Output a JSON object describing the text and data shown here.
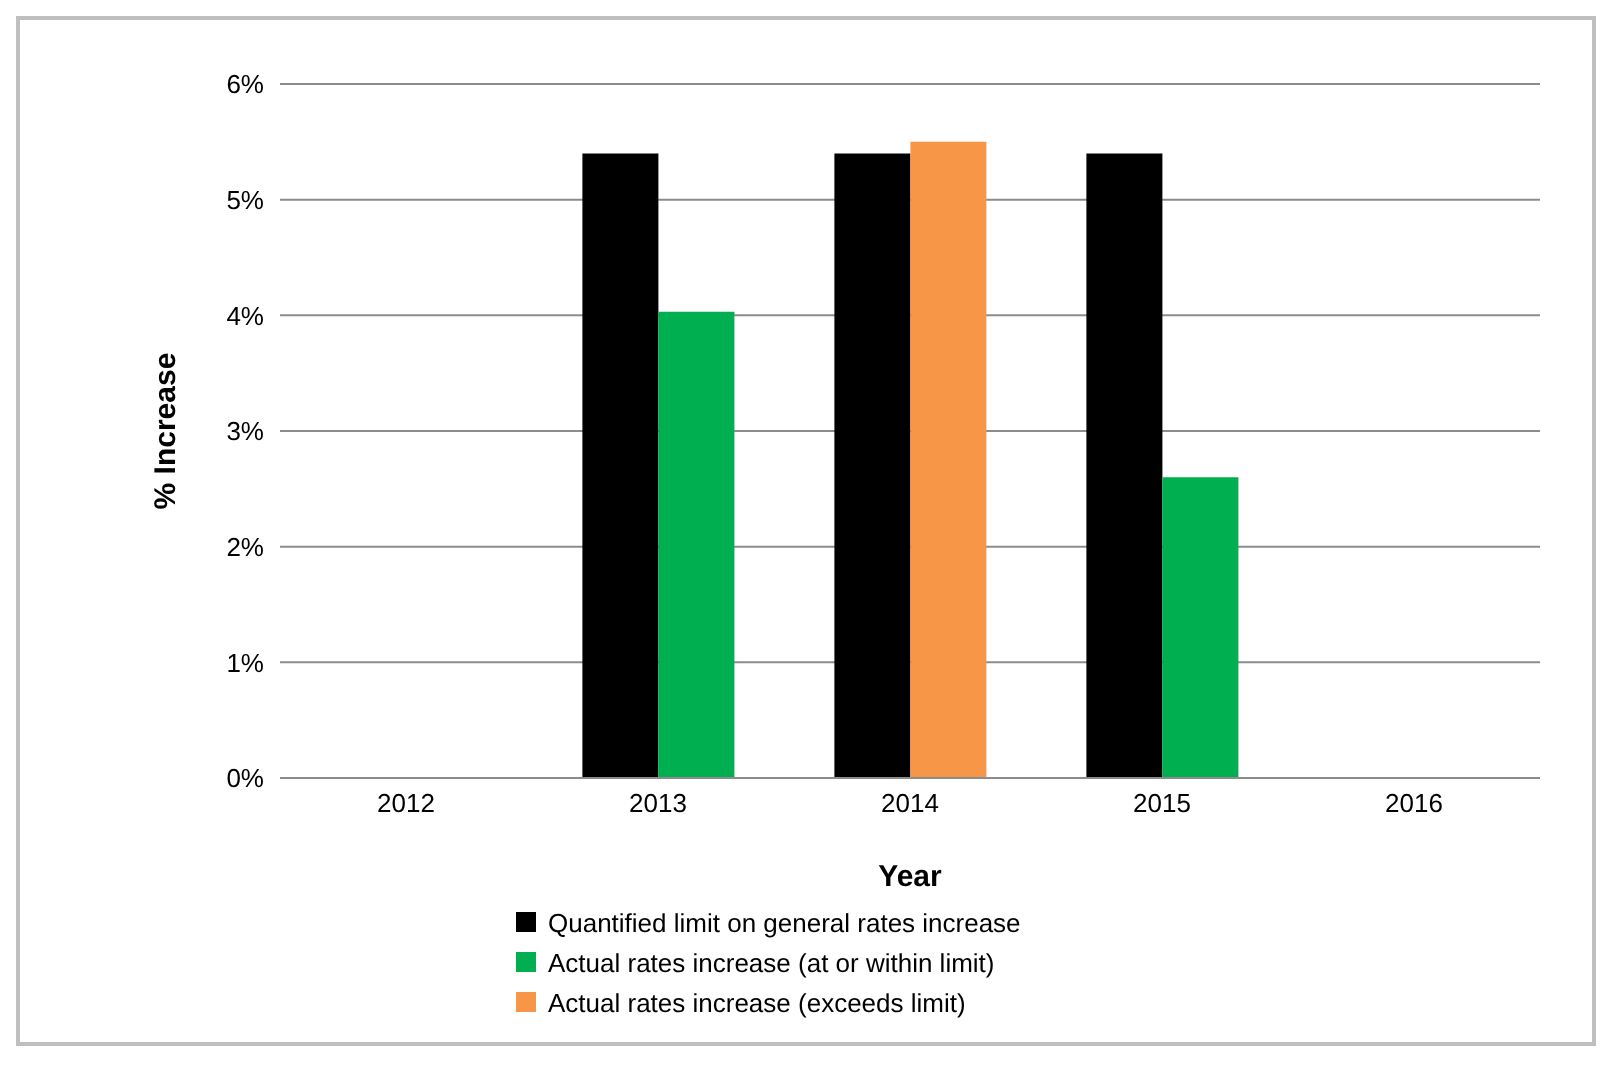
{
  "chart_data": {
    "type": "bar",
    "xlabel": "Year",
    "ylabel": "% Increase",
    "categories": [
      "2012",
      "2013",
      "2014",
      "2015",
      "2016"
    ],
    "series": [
      {
        "name": "Quantified limit on general rates increase",
        "color": "#000000",
        "values": [
          null,
          5.4,
          5.4,
          5.4,
          null
        ]
      },
      {
        "name": "Actual rates increase (at or within limit)",
        "color": "#00b050",
        "values": [
          null,
          4.03,
          null,
          2.6,
          null
        ]
      },
      {
        "name": "Actual rates increase (exceeds limit)",
        "color": "#f79646",
        "values": [
          null,
          null,
          5.5,
          null,
          null
        ]
      }
    ],
    "ylim": [
      0,
      6
    ],
    "yticks": [
      {
        "value": 0,
        "label": "0%"
      },
      {
        "value": 1,
        "label": "1%"
      },
      {
        "value": 2,
        "label": "2%"
      },
      {
        "value": 3,
        "label": "3%"
      },
      {
        "value": 4,
        "label": "4%"
      },
      {
        "value": 5,
        "label": "5%"
      },
      {
        "value": 6,
        "label": "6%"
      }
    ],
    "grid": "y",
    "legend": "bottom"
  }
}
